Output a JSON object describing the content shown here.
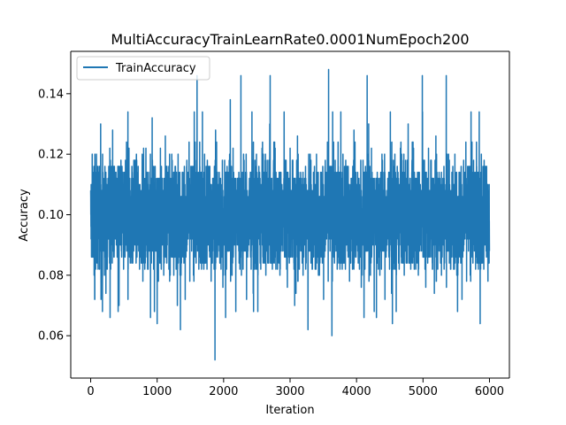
{
  "chart_data": {
    "type": "line",
    "title": "MultiAccuracyTrainLearnRate0.0001NumEpoch200",
    "xlabel": "Iteration",
    "ylabel": "Accuracy",
    "xlim": [
      -300,
      6300
    ],
    "ylim": [
      0.046,
      0.154
    ],
    "xticks": [
      0,
      1000,
      2000,
      3000,
      4000,
      5000,
      6000
    ],
    "yticks": [
      0.06,
      0.08,
      0.1,
      0.12,
      0.14
    ],
    "xtick_labels": [
      "0",
      "1000",
      "2000",
      "3000",
      "4000",
      "5000",
      "6000"
    ],
    "ytick_labels": [
      "0.06",
      "0.08",
      "0.10",
      "0.12",
      "0.14"
    ],
    "legend_position": "top-left",
    "grid": false,
    "series": [
      {
        "name": "TrainAccuracy",
        "color": "#1f77b4",
        "x_range": [
          0,
          6000
        ],
        "num_points": 6000,
        "typical_band": [
          0.084,
          0.118
        ],
        "mean": 0.1,
        "value_quantum": 0.002,
        "extremes": [
          {
            "x": 60,
            "y": 0.072
          },
          {
            "x": 150,
            "y": 0.13
          },
          {
            "x": 420,
            "y": 0.07
          },
          {
            "x": 560,
            "y": 0.134
          },
          {
            "x": 900,
            "y": 0.066
          },
          {
            "x": 1000,
            "y": 0.064
          },
          {
            "x": 1350,
            "y": 0.062
          },
          {
            "x": 1600,
            "y": 0.146
          },
          {
            "x": 1870,
            "y": 0.052
          },
          {
            "x": 2100,
            "y": 0.138
          },
          {
            "x": 2260,
            "y": 0.146
          },
          {
            "x": 2450,
            "y": 0.068
          },
          {
            "x": 2700,
            "y": 0.146
          },
          {
            "x": 3070,
            "y": 0.07
          },
          {
            "x": 3270,
            "y": 0.062
          },
          {
            "x": 3580,
            "y": 0.148
          },
          {
            "x": 3630,
            "y": 0.06
          },
          {
            "x": 4160,
            "y": 0.146
          },
          {
            "x": 4300,
            "y": 0.066
          },
          {
            "x": 4540,
            "y": 0.064
          },
          {
            "x": 4990,
            "y": 0.146
          },
          {
            "x": 5350,
            "y": 0.146
          },
          {
            "x": 5520,
            "y": 0.068
          },
          {
            "x": 5860,
            "y": 0.064
          }
        ]
      }
    ]
  }
}
